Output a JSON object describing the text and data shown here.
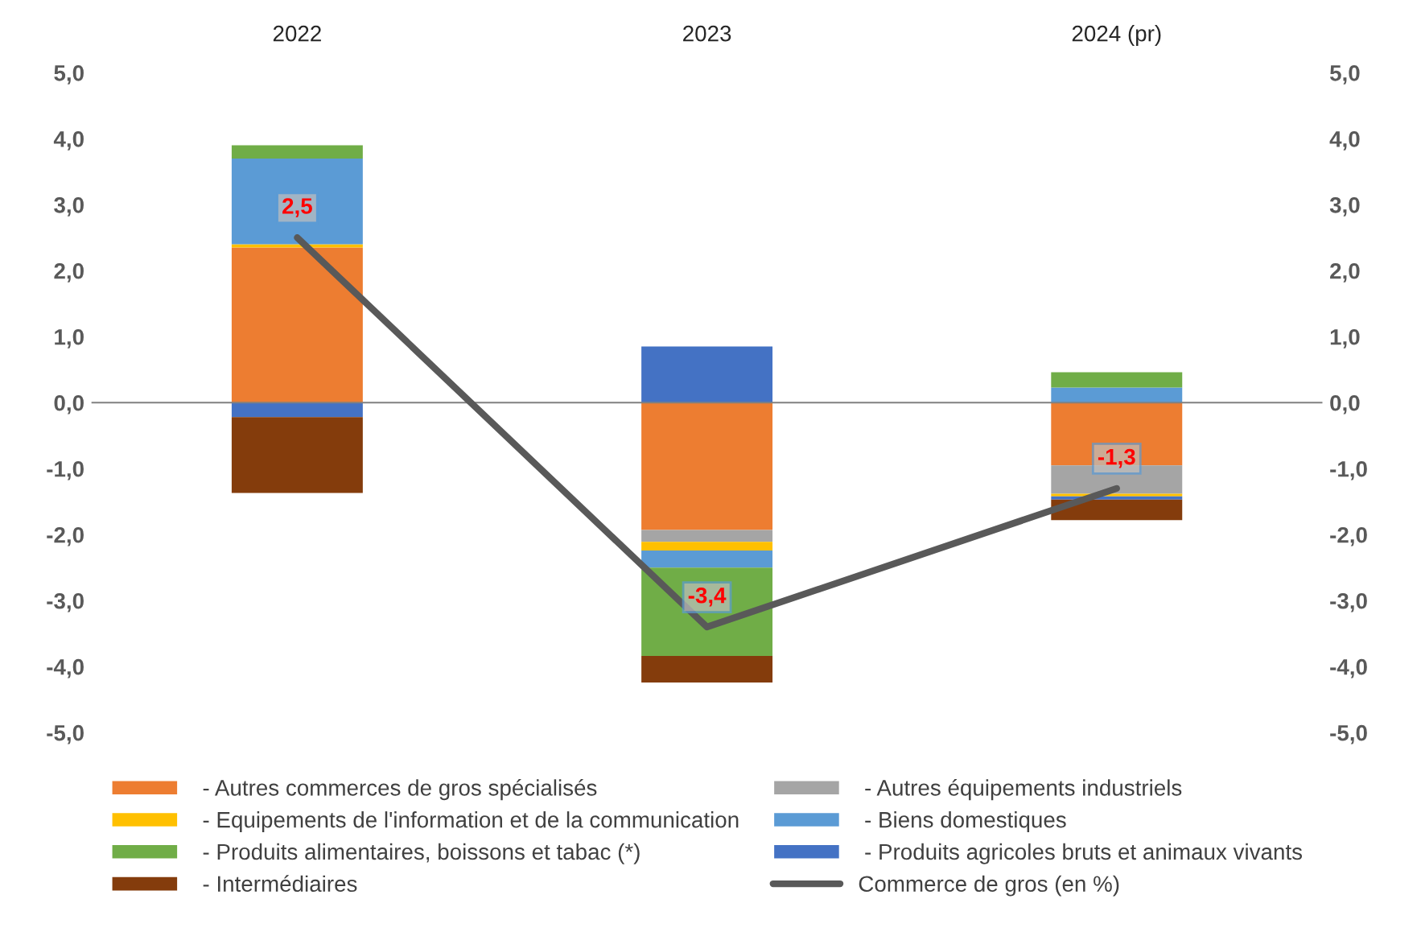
{
  "chart_data": {
    "type": "bar",
    "stacked": true,
    "categories": [
      "2022",
      "2023",
      "2024 (pr)"
    ],
    "series": [
      {
        "name": " - Autres commerces de gros spécialisés",
        "color": "#ed7d31",
        "values": [
          2.35,
          -1.93,
          -0.95
        ]
      },
      {
        "name": " - Autres équipements industriels",
        "color": "#a5a5a5",
        "values": [
          0,
          -0.18,
          -0.43
        ]
      },
      {
        "name": " - Equipements de l'information et de la communication",
        "color": "#ffc000",
        "values": [
          0.05,
          -0.13,
          -0.04
        ]
      },
      {
        "name": " - Biens domestiques",
        "color": "#5b9bd5",
        "values": [
          1.3,
          -0.26,
          0.23
        ]
      },
      {
        "name": " - Produits alimentaires, boissons et tabac (*)",
        "color": "#70ad47",
        "values": [
          0.2,
          -1.34,
          0.23
        ]
      },
      {
        "name": " - Produits agricoles bruts et animaux vivants",
        "color": "#4472c4",
        "values": [
          -0.22,
          0.85,
          -0.05
        ]
      },
      {
        "name": " - Intermédiaires",
        "color": "#843c0c",
        "values": [
          -1.15,
          -0.4,
          -0.31
        ]
      },
      {
        "name": "Commerce de gros (en %)",
        "type": "line",
        "color": "#595959",
        "values": [
          2.5,
          -3.4,
          -1.3
        ],
        "value_labels": [
          "2,5",
          "-3,4",
          "-1,3"
        ]
      }
    ],
    "ylim": [
      -5,
      5
    ],
    "yticks": [
      {
        "value": -5,
        "label": "-5,0"
      },
      {
        "value": -4,
        "label": "-4,0"
      },
      {
        "value": -3,
        "label": "-3,0"
      },
      {
        "value": -2,
        "label": "-2,0"
      },
      {
        "value": -1,
        "label": "-1,0"
      },
      {
        "value": 0,
        "label": "0,0"
      },
      {
        "value": 1,
        "label": "1,0"
      },
      {
        "value": 2,
        "label": "2,0"
      },
      {
        "value": 3,
        "label": "3,0"
      },
      {
        "value": 4,
        "label": "4,0"
      },
      {
        "value": 5,
        "label": "5,0"
      }
    ],
    "y2lim": [
      -5,
      5
    ],
    "y2ticks": [
      {
        "value": -5,
        "label": "-5,0"
      },
      {
        "value": -4,
        "label": "-4,0"
      },
      {
        "value": -3,
        "label": "-3,0"
      },
      {
        "value": -2,
        "label": "-2,0"
      },
      {
        "value": -1,
        "label": "-1,0"
      },
      {
        "value": 0,
        "label": "0,0"
      },
      {
        "value": 1,
        "label": "1,0"
      },
      {
        "value": 2,
        "label": "2,0"
      },
      {
        "value": 3,
        "label": "3,0"
      },
      {
        "value": 4,
        "label": "4,0"
      },
      {
        "value": 5,
        "label": "5,0"
      }
    ],
    "legend": "bottom"
  }
}
